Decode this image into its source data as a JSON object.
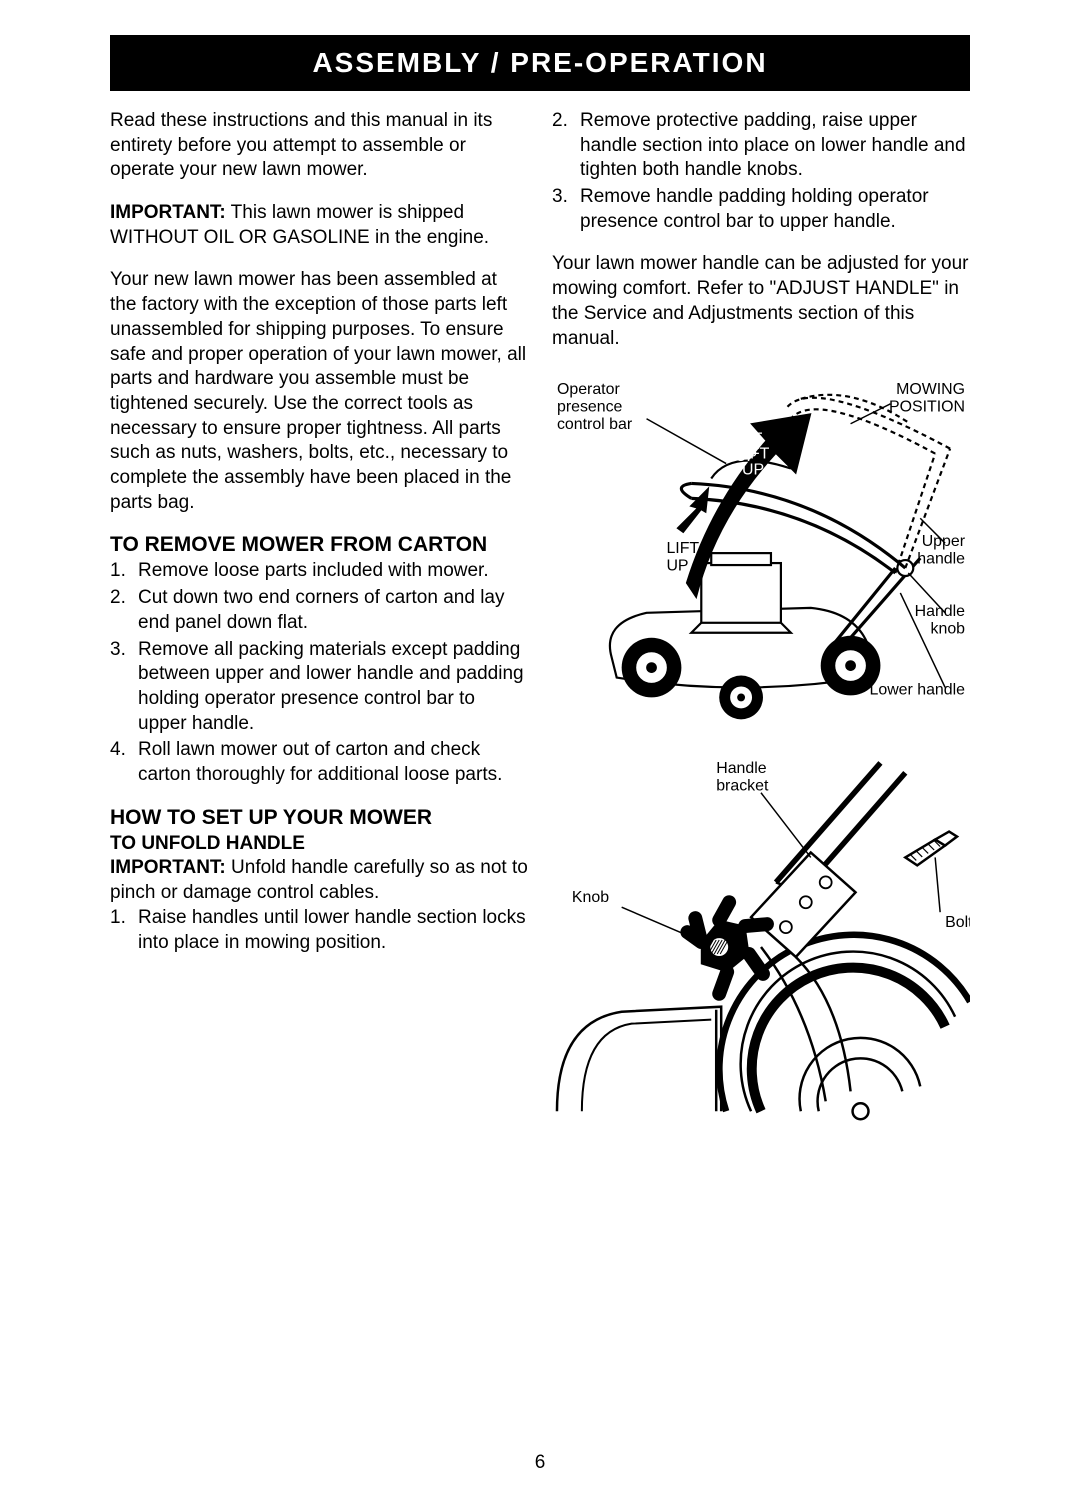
{
  "banner": "ASSEMBLY / PRE-OPERATION",
  "page_number": "6",
  "left": {
    "intro": "Read these instructions and this manual in its entirety before you attempt to assemble or operate your new lawn mower.",
    "important_label": "IMPORTANT:",
    "important_text": " This lawn mower is shipped WITHOUT OIL OR GASOLINE in the engine.",
    "factory": "Your new lawn mower has been assembled at the factory with the exception of those parts left unassembled for shipping purposes. To ensure safe and proper operation of your lawn mower, all parts and hardware you assemble must be tightened securely. Use the correct tools as necessary to ensure proper tightness. All parts such as nuts, washers, bolts, etc., necessary to complete the assembly have been placed in the parts bag.",
    "remove_head": "TO REMOVE MOWER FROM CARTON",
    "remove_items": [
      "Remove loose parts included with mower.",
      "Cut down two end corners of carton and lay end panel down flat.",
      "Remove all packing materials except padding between upper and lower handle and padding holding operator presence control bar to upper handle.",
      "Roll lawn mower out of carton and check carton thoroughly for additional loose parts."
    ],
    "setup_head": "HOW TO SET UP YOUR MOWER",
    "unfold_head": "TO UNFOLD HANDLE",
    "unfold_important_label": "IMPORTANT:",
    "unfold_important_text": " Unfold handle carefully so as not to pinch or damage control cables.",
    "unfold_items": [
      "Raise handles until lower handle section locks into place in mowing position."
    ]
  },
  "right": {
    "steps": [
      "Remove protective padding, raise upper handle section into place on lower handle and tighten both handle knobs.",
      "Remove handle padding holding operator presence control bar to upper handle."
    ],
    "adjust": "Your lawn mower handle can be adjusted for your mowing comfort. Refer to \"ADJUST HANDLE\" in the Service and Adjustments section of this manual."
  },
  "fig1": {
    "labels": {
      "op_presence": "Operator\npresence\ncontrol bar",
      "mowing_pos": "MOWING\nPOSITION",
      "lift_up_1": "LIFT\nUP",
      "lift_up_2": "LIFT\nUP",
      "upper_handle": "Upper\nhandle",
      "handle_knob": "Handle\nknob",
      "lower_handle": "Lower handle"
    },
    "colors": {
      "stroke": "#000000",
      "fill_white": "#ffffff",
      "fill_black": "#000000"
    },
    "stroke_width": 2.2,
    "dash": "5,4",
    "font_size": 16
  },
  "fig2": {
    "labels": {
      "handle_bracket": "Handle\nbracket",
      "knob": "Knob",
      "bolt": "Bolt"
    },
    "colors": {
      "stroke": "#000000",
      "fill_white": "#ffffff",
      "fill_black": "#000000"
    },
    "stroke_width": 2.5,
    "font_size": 16
  }
}
